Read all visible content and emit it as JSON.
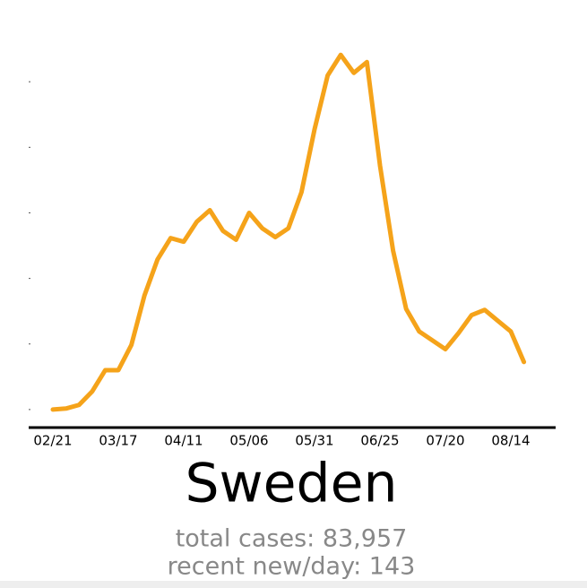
{
  "chart_data": {
    "type": "line",
    "title": "Sweden",
    "stats": [
      "total cases: 83,957",
      "recent new/day: 143"
    ],
    "categories": [
      "02/21",
      null,
      null,
      null,
      null,
      "03/17",
      null,
      null,
      null,
      null,
      "04/11",
      null,
      null,
      null,
      null,
      "05/06",
      null,
      null,
      null,
      null,
      "05/31",
      null,
      null,
      null,
      null,
      "06/25",
      null,
      null,
      null,
      null,
      "07/20",
      null,
      null,
      null,
      null,
      "08/14",
      null
    ],
    "series": [
      {
        "color": "#f5a31a",
        "values": [
          0,
          3,
          14,
          55,
          120,
          120,
          197,
          348,
          458,
          523,
          512,
          573,
          608,
          545,
          518,
          600,
          553,
          526,
          553,
          663,
          855,
          1019,
          1082,
          1027,
          1060,
          745,
          485,
          307,
          238,
          211,
          184,
          233,
          288,
          304,
          271,
          238,
          145
        ]
      }
    ],
    "ylim": [
      -55,
      1140
    ],
    "yticks": [
      0,
      200,
      400,
      600,
      800,
      1000
    ]
  }
}
